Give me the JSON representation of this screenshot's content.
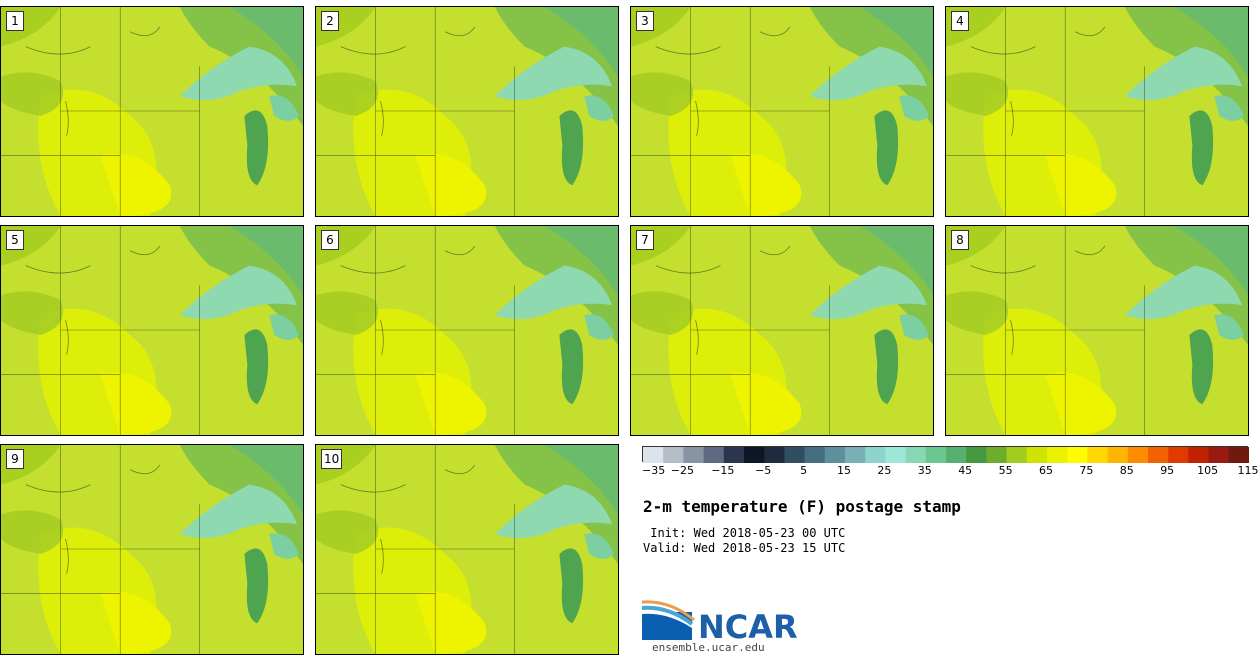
{
  "title": "2-m temperature (F) postage stamp",
  "init_label": " Init:",
  "init_value": "Wed 2018-05-23 00 UTC",
  "valid_label": "Valid:",
  "valid_value": "Wed 2018-05-23 15 UTC",
  "logo_text": "NCAR",
  "site": "ensemble.ucar.edu",
  "panels": [
    "1",
    "2",
    "3",
    "4",
    "5",
    "6",
    "7",
    "8",
    "9",
    "10"
  ],
  "colorbar": {
    "tick_labels": [
      "−35",
      "−25",
      "−15",
      "−5",
      "5",
      "15",
      "25",
      "35",
      "45",
      "55",
      "65",
      "75",
      "85",
      "95",
      "105",
      "115"
    ],
    "colors": [
      "#dde3ea",
      "#b3bcc7",
      "#8893a3",
      "#5e6a80",
      "#2b3550",
      "#0e1526",
      "#1d2b3d",
      "#2f4e62",
      "#456f80",
      "#5e8f9b",
      "#78b0b5",
      "#8fd3cd",
      "#9ce7d8",
      "#86d8b5",
      "#6cc690",
      "#56b06f",
      "#44983f",
      "#6cae2c",
      "#a2cd1f",
      "#cfe300",
      "#eaf200",
      "#fffb00",
      "#ffd800",
      "#ffb400",
      "#ff8c00",
      "#f46100",
      "#e03a00",
      "#c02100",
      "#981a10",
      "#6e1a10"
    ]
  }
}
